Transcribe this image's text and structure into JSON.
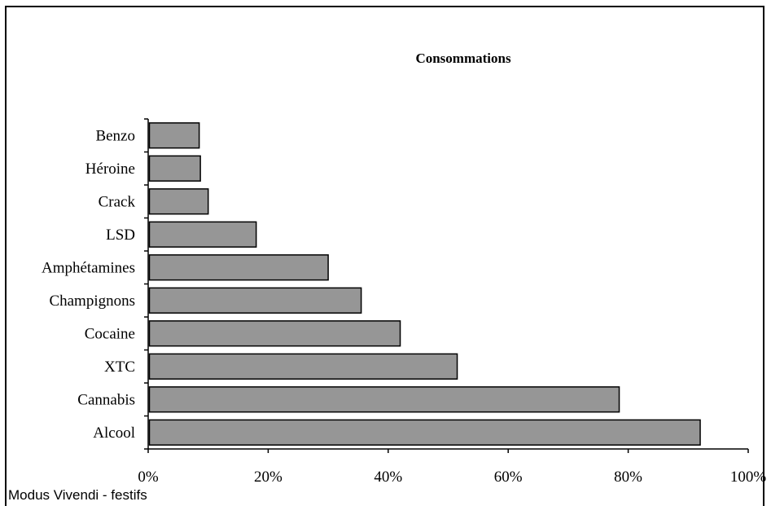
{
  "chart_data": {
    "type": "bar",
    "orientation": "horizontal",
    "title": "Consommations",
    "categories": [
      "Alcool",
      "Cannabis",
      "XTC",
      "Cocaine",
      "Champignons",
      "Amphétamines",
      "LSD",
      "Crack",
      "Héroine",
      "Benzo"
    ],
    "values": [
      92,
      78.5,
      51.5,
      42,
      35.5,
      30,
      18,
      10,
      8.7,
      8.5
    ],
    "xlim": [
      0,
      100
    ],
    "x_ticks": [
      "0%",
      "20%",
      "40%",
      "60%",
      "80%",
      "100%"
    ],
    "x_tick_values": [
      0,
      20,
      40,
      60,
      80,
      100
    ],
    "xlabel": "",
    "ylabel": "",
    "grid": false,
    "legend": "none",
    "bar_color": "#969696"
  },
  "footer": {
    "source": "Modus Vivendi - festifs"
  }
}
